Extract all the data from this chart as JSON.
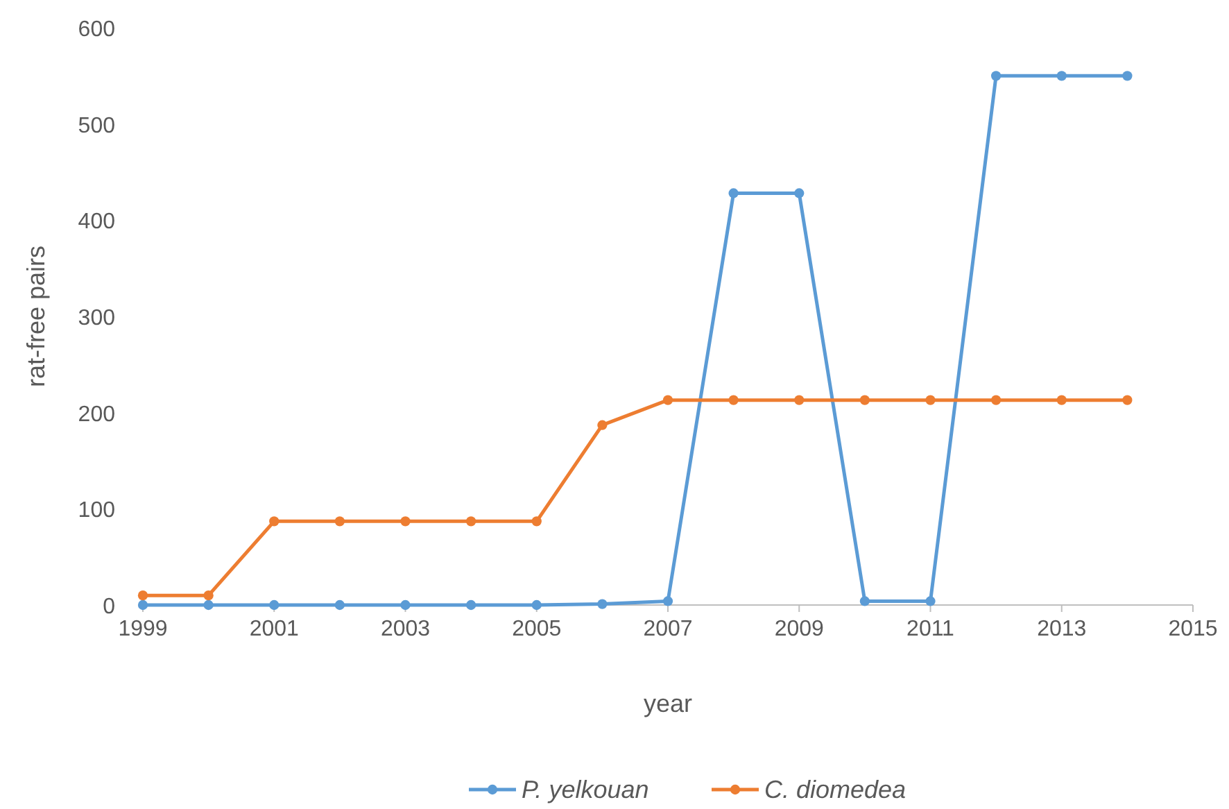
{
  "chart_data": {
    "type": "line",
    "xlabel": "year",
    "ylabel": "rat-free pairs",
    "x": [
      1999,
      2000,
      2001,
      2002,
      2003,
      2004,
      2005,
      2006,
      2007,
      2008,
      2009,
      2010,
      2011,
      2012,
      2013,
      2014
    ],
    "series": [
      {
        "name": "P. yelkouan",
        "color": "#5b9bd5",
        "values": [
          0,
          0,
          0,
          0,
          0,
          0,
          0,
          1,
          4,
          428,
          428,
          4,
          4,
          550,
          550,
          550
        ]
      },
      {
        "name": "C. diomedea",
        "color": "#ed7d31",
        "values": [
          10,
          10,
          87,
          87,
          87,
          87,
          87,
          187,
          213,
          213,
          213,
          213,
          213,
          213,
          213,
          213
        ]
      }
    ],
    "xlim": [
      1999,
      2015
    ],
    "xticks": [
      1999,
      2001,
      2003,
      2005,
      2007,
      2009,
      2011,
      2013,
      2015
    ],
    "ylim": [
      0,
      600
    ],
    "yticks": [
      0,
      100,
      200,
      300,
      400,
      500,
      600
    ],
    "grid": false,
    "legend": "bottom",
    "marker": "circle",
    "line_style": "solid"
  }
}
